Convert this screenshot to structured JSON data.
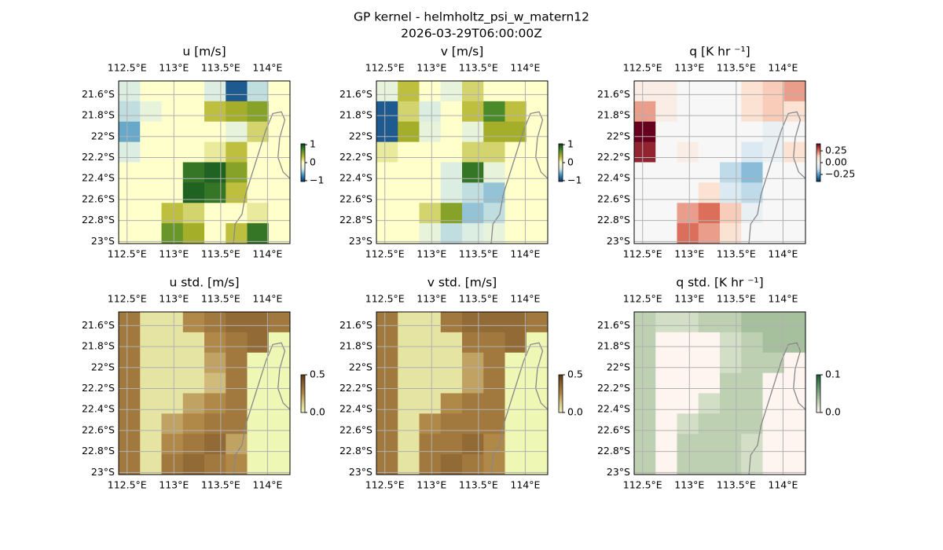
{
  "title": "GP kernel - helmholtz_psi_w_matern12",
  "subtitle": "2026-03-29T06:00:00Z",
  "chart_data": [
    {
      "type": "heatmap",
      "title": "u [m/s]",
      "xlim": [
        112.41,
        114.24
      ],
      "ylim": [
        -23.02,
        -21.47
      ],
      "xticks": [
        {
          "value": 112.5,
          "label": "112.5°E"
        },
        {
          "value": 113,
          "label": "113°E"
        },
        {
          "value": 113.5,
          "label": "113.5°E"
        },
        {
          "value": 114,
          "label": "114°E"
        }
      ],
      "yticks": [
        {
          "value": -21.6,
          "label": "21.6°S"
        },
        {
          "value": -21.8,
          "label": "21.8°S"
        },
        {
          "value": -22,
          "label": "22°S"
        },
        {
          "value": -22.2,
          "label": "22.2°S"
        },
        {
          "value": -22.4,
          "label": "22.4°S"
        },
        {
          "value": -22.6,
          "label": "22.6°S"
        },
        {
          "value": -22.8,
          "label": "22.8°S"
        },
        {
          "value": -23,
          "label": "23°S"
        }
      ],
      "grid": true,
      "clim": [
        -1.05,
        1.05
      ],
      "cticks": [
        1,
        0,
        {
          "value": -1,
          "label": "−1"
        }
      ],
      "colormap": [
        "#08306b",
        "#3c8fbf",
        "#d6eae6",
        "#ffffcc",
        "#b4b428",
        "#4a8a2a",
        "#00441b"
      ],
      "values": [
        [
          -0.3,
          0,
          0,
          0,
          -0.3,
          -0.9,
          -0.4,
          0
        ],
        [
          -0.4,
          -0.2,
          0,
          0,
          0.3,
          0.4,
          0.5,
          0
        ],
        [
          -0.6,
          0,
          0,
          0,
          0,
          -0.2,
          0.2,
          0
        ],
        [
          -0.3,
          0,
          0,
          0,
          0.1,
          0.3,
          0,
          0
        ],
        [
          0,
          0,
          0,
          0.8,
          0.9,
          0.5,
          0,
          0
        ],
        [
          0,
          0,
          0,
          0.9,
          0.8,
          0.3,
          0,
          0
        ],
        [
          0,
          0,
          0.3,
          0.2,
          0,
          0,
          0.1,
          0
        ],
        [
          0,
          0,
          0.6,
          0.4,
          0,
          0.3,
          0.8,
          0
        ]
      ]
    },
    {
      "type": "heatmap",
      "title": "v [m/s]",
      "xlim": [
        112.41,
        114.24
      ],
      "ylim": [
        -23.02,
        -21.47
      ],
      "xticks": [
        {
          "value": 112.5,
          "label": "112.5°E"
        },
        {
          "value": 113,
          "label": "113°E"
        },
        {
          "value": 113.5,
          "label": "113.5°E"
        },
        {
          "value": 114,
          "label": "114°E"
        }
      ],
      "yticks": [
        {
          "value": -21.6,
          "label": "21.6°S"
        },
        {
          "value": -21.8,
          "label": "21.8°S"
        },
        {
          "value": -22,
          "label": "22°S"
        },
        {
          "value": -22.2,
          "label": "22.2°S"
        },
        {
          "value": -22.4,
          "label": "22.4°S"
        },
        {
          "value": -22.6,
          "label": "22.6°S"
        },
        {
          "value": -22.8,
          "label": "22.8°S"
        },
        {
          "value": -23,
          "label": "23°S"
        }
      ],
      "grid": true,
      "clim": [
        -1.05,
        1.05
      ],
      "cticks": [
        1,
        0,
        {
          "value": -1,
          "label": "−1"
        }
      ],
      "colormap": [
        "#08306b",
        "#3c8fbf",
        "#d6eae6",
        "#ffffcc",
        "#b4b428",
        "#4a8a2a",
        "#00441b"
      ],
      "values": [
        [
          -0.2,
          0.3,
          0,
          -0.2,
          0.2,
          0,
          0,
          0
        ],
        [
          -0.9,
          0.2,
          -0.3,
          0,
          0.3,
          0.7,
          0.3,
          0
        ],
        [
          -0.9,
          0.4,
          -0.2,
          0,
          -0.2,
          0.4,
          0.4,
          0
        ],
        [
          0.1,
          0,
          0,
          0,
          0.2,
          0.2,
          0,
          0
        ],
        [
          0,
          0,
          0,
          -0.3,
          0.8,
          -0.2,
          0,
          0
        ],
        [
          0,
          0,
          0,
          -0.3,
          -0.4,
          -0.5,
          0,
          0
        ],
        [
          0,
          0,
          0.2,
          0.5,
          -0.5,
          -0.4,
          0,
          0
        ],
        [
          0,
          0,
          -0.2,
          -0.4,
          -0.3,
          -0.2,
          0,
          0
        ]
      ]
    },
    {
      "type": "heatmap",
      "title": "q [K hr ⁻¹]",
      "xlim": [
        112.41,
        114.24
      ],
      "ylim": [
        -23.02,
        -21.47
      ],
      "xticks": [
        {
          "value": 112.5,
          "label": "112.5°E"
        },
        {
          "value": 113,
          "label": "113°E"
        },
        {
          "value": 113.5,
          "label": "113.5°E"
        },
        {
          "value": 114,
          "label": "114°E"
        }
      ],
      "yticks": [
        {
          "value": -21.6,
          "label": "21.6°S"
        },
        {
          "value": -21.8,
          "label": "21.8°S"
        },
        {
          "value": -22,
          "label": "22°S"
        },
        {
          "value": -22.2,
          "label": "22.2°S"
        },
        {
          "value": -22.4,
          "label": "22.4°S"
        },
        {
          "value": -22.6,
          "label": "22.6°S"
        },
        {
          "value": -22.8,
          "label": "22.8°S"
        },
        {
          "value": -23,
          "label": "23°S"
        }
      ],
      "grid": true,
      "clim": [
        -0.4,
        0.4
      ],
      "cticks": [
        0.25,
        {
          "value": 0,
          "label": "0.00"
        },
        {
          "value": -0.25,
          "label": "−0.25"
        }
      ],
      "colormap": [
        "#053061",
        "#4393c3",
        "#d1e5f0",
        "#f7f7f7",
        "#fddbc7",
        "#d6604d",
        "#67001f"
      ],
      "values": [
        [
          0.05,
          0.05,
          0,
          0,
          0,
          0.1,
          0.15,
          0.2
        ],
        [
          0.2,
          0.05,
          0,
          0,
          0,
          0.1,
          0.15,
          0.1
        ],
        [
          0.4,
          0,
          0,
          0,
          0,
          0,
          -0.05,
          0
        ],
        [
          0.35,
          0,
          0.05,
          0,
          0,
          -0.1,
          -0.05,
          0.1
        ],
        [
          0,
          0,
          0,
          0,
          -0.15,
          -0.2,
          0,
          0
        ],
        [
          0,
          0,
          0,
          0.1,
          -0.1,
          -0.15,
          0,
          0
        ],
        [
          0,
          0,
          0.2,
          0.25,
          0.15,
          -0.05,
          0,
          0
        ],
        [
          0,
          0,
          0.25,
          0.2,
          0.1,
          0,
          0,
          0
        ]
      ]
    },
    {
      "type": "heatmap",
      "title": "u std. [m/s]",
      "xlim": [
        112.41,
        114.24
      ],
      "ylim": [
        -23.02,
        -21.47
      ],
      "xticks": [
        {
          "value": 112.5,
          "label": "112.5°E"
        },
        {
          "value": 113,
          "label": "113°E"
        },
        {
          "value": 113.5,
          "label": "113.5°E"
        },
        {
          "value": 114,
          "label": "114°E"
        }
      ],
      "yticks": [
        {
          "value": -21.6,
          "label": "21.6°S"
        },
        {
          "value": -21.8,
          "label": "21.8°S"
        },
        {
          "value": -22,
          "label": "22°S"
        },
        {
          "value": -22.2,
          "label": "22.2°S"
        },
        {
          "value": -22.4,
          "label": "22.4°S"
        },
        {
          "value": -22.6,
          "label": "22.6°S"
        },
        {
          "value": -22.8,
          "label": "22.8°S"
        },
        {
          "value": -23,
          "label": "23°S"
        }
      ],
      "grid": true,
      "clim": [
        0,
        0.5
      ],
      "cticks": [
        0.5,
        {
          "value": 0,
          "label": "0.0"
        }
      ],
      "colormap": [
        "#eef7b4",
        "#d8c888",
        "#b08848",
        "#8a6230",
        "#5a3a10"
      ],
      "values": [
        [
          0.3,
          0.05,
          0.05,
          0.25,
          0.3,
          0.35,
          0.35,
          0.3
        ],
        [
          0.3,
          0.05,
          0.05,
          0.05,
          0.25,
          0.3,
          0.35,
          0
        ],
        [
          0.3,
          0.05,
          0.05,
          0.05,
          0.2,
          0.3,
          0,
          0
        ],
        [
          0.3,
          0.05,
          0.05,
          0.05,
          0.15,
          0.3,
          0,
          0
        ],
        [
          0.3,
          0.05,
          0.05,
          0.2,
          0.25,
          0.3,
          0,
          0
        ],
        [
          0.3,
          0.05,
          0.2,
          0.25,
          0.3,
          0.3,
          0,
          0
        ],
        [
          0.3,
          0.05,
          0.25,
          0.3,
          0.35,
          0.2,
          0,
          0
        ],
        [
          0.3,
          0.05,
          0.3,
          0.35,
          0.3,
          0.25,
          0,
          0
        ]
      ]
    },
    {
      "type": "heatmap",
      "title": "v std. [m/s]",
      "xlim": [
        112.41,
        114.24
      ],
      "ylim": [
        -23.02,
        -21.47
      ],
      "xticks": [
        {
          "value": 112.5,
          "label": "112.5°E"
        },
        {
          "value": 113,
          "label": "113°E"
        },
        {
          "value": 113.5,
          "label": "113.5°E"
        },
        {
          "value": 114,
          "label": "114°E"
        }
      ],
      "yticks": [
        {
          "value": -21.6,
          "label": "21.6°S"
        },
        {
          "value": -21.8,
          "label": "21.8°S"
        },
        {
          "value": -22,
          "label": "22°S"
        },
        {
          "value": -22.2,
          "label": "22.2°S"
        },
        {
          "value": -22.4,
          "label": "22.4°S"
        },
        {
          "value": -22.6,
          "label": "22.6°S"
        },
        {
          "value": -22.8,
          "label": "22.8°S"
        },
        {
          "value": -23,
          "label": "23°S"
        }
      ],
      "grid": true,
      "clim": [
        0,
        0.5
      ],
      "cticks": [
        0.5,
        {
          "value": 0,
          "label": "0.0"
        }
      ],
      "colormap": [
        "#eef7b4",
        "#d8c888",
        "#b08848",
        "#8a6230",
        "#5a3a10"
      ],
      "values": [
        [
          0.3,
          0.05,
          0.05,
          0.3,
          0.35,
          0.35,
          0.35,
          0.3
        ],
        [
          0.3,
          0.05,
          0.05,
          0.05,
          0.3,
          0.3,
          0.35,
          0
        ],
        [
          0.3,
          0.05,
          0.05,
          0.05,
          0.2,
          0.3,
          0,
          0
        ],
        [
          0.3,
          0.05,
          0.05,
          0.05,
          0.2,
          0.3,
          0,
          0
        ],
        [
          0.3,
          0.05,
          0.05,
          0.25,
          0.3,
          0.3,
          0,
          0
        ],
        [
          0.3,
          0.05,
          0.25,
          0.3,
          0.3,
          0.3,
          0,
          0
        ],
        [
          0.3,
          0.05,
          0.3,
          0.3,
          0.35,
          0.25,
          0,
          0
        ],
        [
          0.3,
          0.05,
          0.3,
          0.35,
          0.3,
          0.25,
          0,
          0
        ]
      ]
    },
    {
      "type": "heatmap",
      "title": "q std. [K hr ⁻¹]",
      "xlim": [
        112.41,
        114.24
      ],
      "ylim": [
        -23.02,
        -21.47
      ],
      "xticks": [
        {
          "value": 112.5,
          "label": "112.5°E"
        },
        {
          "value": 113,
          "label": "113°E"
        },
        {
          "value": 113.5,
          "label": "113.5°E"
        },
        {
          "value": 114,
          "label": "114°E"
        }
      ],
      "yticks": [
        {
          "value": -21.6,
          "label": "21.6°S"
        },
        {
          "value": -21.8,
          "label": "21.8°S"
        },
        {
          "value": -22,
          "label": "22°S"
        },
        {
          "value": -22.2,
          "label": "22.2°S"
        },
        {
          "value": -22.4,
          "label": "22.4°S"
        },
        {
          "value": -22.6,
          "label": "22.6°S"
        },
        {
          "value": -22.8,
          "label": "22.8°S"
        },
        {
          "value": -23,
          "label": "23°S"
        }
      ],
      "grid": true,
      "clim": [
        0,
        0.1
      ],
      "cticks": [
        0.1,
        {
          "value": 0,
          "label": "0.0"
        }
      ],
      "colormap": [
        "#fff5f0",
        "#c8d8bc",
        "#8fb08a",
        "#4f8a5e",
        "#1e5a32"
      ],
      "values": [
        [
          0.03,
          0.02,
          0.02,
          0.03,
          0.03,
          0.04,
          0.04,
          0.04
        ],
        [
          0.03,
          0,
          0,
          0,
          0.02,
          0.03,
          0.04,
          0.04
        ],
        [
          0.03,
          0,
          0,
          0,
          0.02,
          0.03,
          0.03,
          0
        ],
        [
          0.03,
          0,
          0,
          0,
          0.03,
          0.03,
          0,
          0
        ],
        [
          0.03,
          0,
          0,
          0.02,
          0.03,
          0.03,
          0,
          0
        ],
        [
          0.03,
          0,
          0.02,
          0.03,
          0.03,
          0.03,
          0,
          0
        ],
        [
          0.03,
          0,
          0.03,
          0.03,
          0.03,
          0.02,
          0,
          0
        ],
        [
          0.03,
          0,
          0.03,
          0.03,
          0.03,
          0.02,
          0,
          0
        ]
      ]
    }
  ]
}
